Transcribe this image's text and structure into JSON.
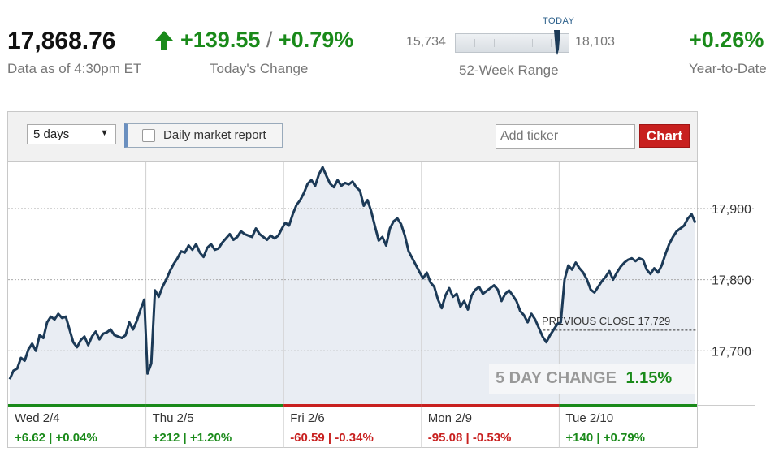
{
  "header": {
    "price": "17,868.76",
    "as_of": "Data as of 4:30pm ET",
    "change": "+139.55",
    "change_sep": "/",
    "change_pct": "+0.79%",
    "change_label": "Today's Change",
    "today_label": "TODAY",
    "range_low": "15,734",
    "range_high": "18,103",
    "range_label": "52-Week Range",
    "range_low_value": 15734,
    "range_high_value": 18103,
    "range_current_value": 17868.76,
    "ytd": "+0.26%",
    "ytd_label": "Year-to-Date"
  },
  "toolbar": {
    "period": "5 days",
    "report_label": "Daily market report",
    "ticker_placeholder": "Add ticker",
    "chart_button": "Chart"
  },
  "colors": {
    "up": "#1a8a1a",
    "down": "#c8201f",
    "line": "#1c3a57",
    "fill": "#e9edf3"
  },
  "chart_data": {
    "type": "line",
    "ylim": [
      17625,
      17965
    ],
    "y_ticks": [
      17700,
      17800,
      17900
    ],
    "y_tick_labels": [
      "17,700",
      "17,800",
      "17,900"
    ],
    "previous_close": 17729,
    "previous_close_label": "PREVIOUS CLOSE 17,729",
    "five_day_label": "5 DAY CHANGE",
    "five_day_value": "1.15%",
    "days": [
      {
        "label": "Wed 2/4",
        "change": "+6.62 | +0.04%",
        "direction": "up",
        "values": [
          17660,
          17672,
          17675,
          17690,
          17686,
          17702,
          17710,
          17700,
          17722,
          17718,
          17740,
          17748,
          17744,
          17752,
          17746,
          17748,
          17730,
          17712,
          17705,
          17715,
          17720,
          17708,
          17720,
          17727,
          17716,
          17724,
          17726,
          17730,
          17722,
          17720,
          17718,
          17722,
          17740,
          17730,
          17742,
          17758,
          17772
        ]
      },
      {
        "label": "Thu 2/5",
        "change": "+212 | +1.20%",
        "direction": "up",
        "values": [
          17668,
          17682,
          17785,
          17776,
          17790,
          17800,
          17812,
          17822,
          17830,
          17840,
          17838,
          17848,
          17842,
          17850,
          17838,
          17832,
          17845,
          17850,
          17842,
          17844,
          17852,
          17858,
          17864,
          17856,
          17860,
          17868,
          17864,
          17862,
          17860,
          17872,
          17864,
          17860,
          17856,
          17862,
          17858,
          17862,
          17872
        ]
      },
      {
        "label": "Fri 2/6",
        "change": "-60.59 | -0.34%",
        "direction": "down",
        "values": [
          17880,
          17876,
          17892,
          17905,
          17912,
          17922,
          17935,
          17940,
          17932,
          17948,
          17958,
          17946,
          17935,
          17930,
          17940,
          17932,
          17936,
          17934,
          17938,
          17930,
          17925,
          17904,
          17912,
          17896,
          17875,
          17855,
          17860,
          17848,
          17872,
          17882,
          17886,
          17878,
          17862,
          17840,
          17830,
          17820,
          17810
        ]
      },
      {
        "label": "Mon 2/9",
        "change": "-95.08 | -0.53%",
        "direction": "down",
        "values": [
          17802,
          17810,
          17796,
          17790,
          17772,
          17760,
          17778,
          17788,
          17776,
          17780,
          17762,
          17770,
          17758,
          17778,
          17786,
          17790,
          17780,
          17784,
          17788,
          17792,
          17786,
          17770,
          17780,
          17785,
          17778,
          17770,
          17756,
          17750,
          17740,
          17752,
          17744,
          17732,
          17720,
          17712,
          17722,
          17730,
          17738
        ]
      },
      {
        "label": "Tue 2/10",
        "change": "+140 | +0.79%",
        "direction": "up",
        "values": [
          17740,
          17800,
          17820,
          17814,
          17824,
          17816,
          17810,
          17800,
          17786,
          17782,
          17790,
          17798,
          17804,
          17812,
          17800,
          17810,
          17818,
          17824,
          17828,
          17830,
          17826,
          17830,
          17828,
          17814,
          17808,
          17816,
          17810,
          17820,
          17836,
          17850,
          17860,
          17868,
          17872,
          17876,
          17886,
          17892,
          17880
        ]
      }
    ]
  }
}
